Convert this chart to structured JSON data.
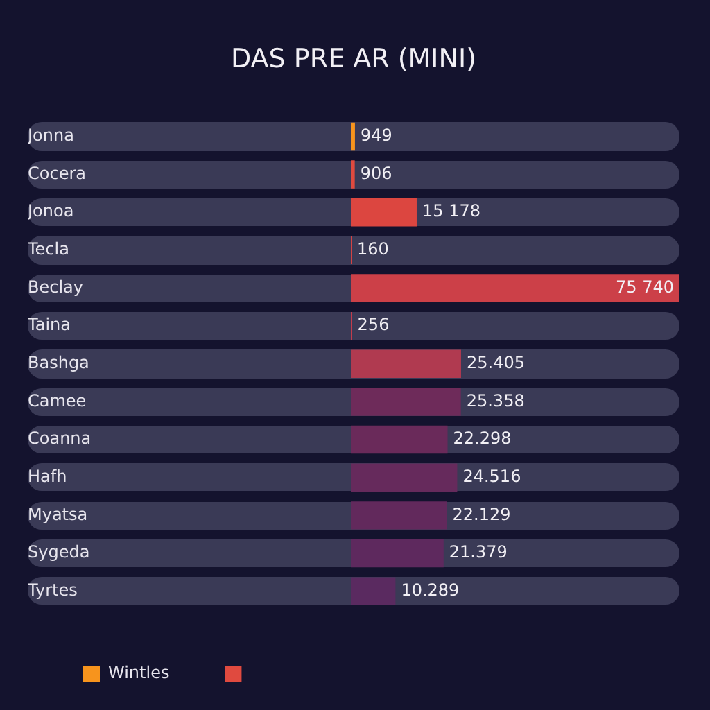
{
  "chart_data": {
    "type": "bar",
    "title": "DAS PRE AR (MINI)",
    "orientation": "horizontal",
    "stacked": true,
    "legend": "bottom left",
    "categories": [
      "Jonna",
      "Cocera",
      "Jonoa",
      "Tecla",
      "Beclay",
      "Taina",
      "Bashga",
      "Camee",
      "Coanna",
      "Hafh",
      "Myatsa",
      "Sygeda",
      "Tyrtes"
    ],
    "series": [
      {
        "name": "Wintles",
        "color": "#f7941d",
        "values": [
          949,
          null,
          null,
          null,
          null,
          null,
          null,
          null,
          null,
          null,
          null,
          null,
          null
        ],
        "value_labels": [
          "949",
          null,
          null,
          null,
          null,
          null,
          null,
          null,
          null,
          null,
          null,
          null,
          null
        ]
      },
      {
        "color": "#e04a3f",
        "colors": [
          "#e04a3f",
          "#e04a3f",
          "#dc4640",
          "#d44344",
          "#cc4048",
          "#c23c4c",
          "#b03a50",
          "#6e2b5a",
          "#6a2a5a",
          "#662a5c",
          "#62295c",
          "#5e295e",
          "#5a2a60"
        ],
        "values": [
          null,
          906,
          15178,
          160,
          75740,
          256,
          25405,
          25358,
          22298,
          24516,
          22129,
          21379,
          10289
        ],
        "value_labels": [
          null,
          "906",
          "15 178",
          "160",
          "75 740",
          "256",
          "25.405",
          "25.358",
          "22.298",
          "24.516",
          "22.129",
          "21.379",
          "10.289"
        ]
      }
    ]
  }
}
